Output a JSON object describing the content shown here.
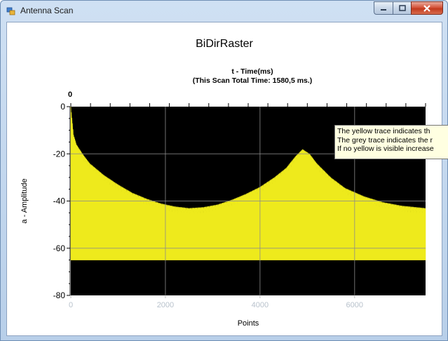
{
  "window": {
    "title": "Antenna Scan",
    "icon": "app-icon",
    "buttons": {
      "minimize": "minimize-icon",
      "maximize": "maximize-icon",
      "close": "close-icon"
    }
  },
  "chart_data": {
    "type": "area",
    "title": "BiDirRaster",
    "x_title_line1": "t - Time(ms)",
    "x_title_line2": "(This Scan Total Time: 1580,5 ms.)",
    "top_axis_tick": "0",
    "xlabel": "Points",
    "ylabel": "a - Amplitude",
    "xlim": [
      0,
      7500
    ],
    "ylim": [
      -80,
      0
    ],
    "x_ticks": [
      0,
      2000,
      4000,
      6000
    ],
    "y_ticks": [
      0,
      -20,
      -40,
      -60,
      -80
    ],
    "grid": true,
    "background": "#000000",
    "series": [
      {
        "color": "#eeea1c",
        "envelope": [
          [
            0,
            0
          ],
          [
            60,
            -12
          ],
          [
            120,
            -16
          ],
          [
            250,
            -20
          ],
          [
            400,
            -24
          ],
          [
            700,
            -29
          ],
          [
            1000,
            -33
          ],
          [
            1300,
            -36.5
          ],
          [
            1600,
            -39
          ],
          [
            1900,
            -41
          ],
          [
            2200,
            -42.3
          ],
          [
            2500,
            -43
          ],
          [
            2800,
            -42.6
          ],
          [
            3100,
            -41.5
          ],
          [
            3400,
            -39.5
          ],
          [
            3700,
            -37
          ],
          [
            4000,
            -34
          ],
          [
            4300,
            -30
          ],
          [
            4550,
            -26
          ],
          [
            4750,
            -21
          ],
          [
            4900,
            -18
          ],
          [
            5050,
            -20
          ],
          [
            5200,
            -24
          ],
          [
            5500,
            -30
          ],
          [
            5800,
            -34.5
          ],
          [
            6200,
            -38
          ],
          [
            6600,
            -40.5
          ],
          [
            7000,
            -42
          ],
          [
            7500,
            -43
          ]
        ],
        "floor": -65
      }
    ]
  },
  "tooltip": {
    "line1": "The yellow trace indicates th",
    "line2": "The grey trace indicates the r",
    "line3": "If no yellow is visible increase"
  }
}
